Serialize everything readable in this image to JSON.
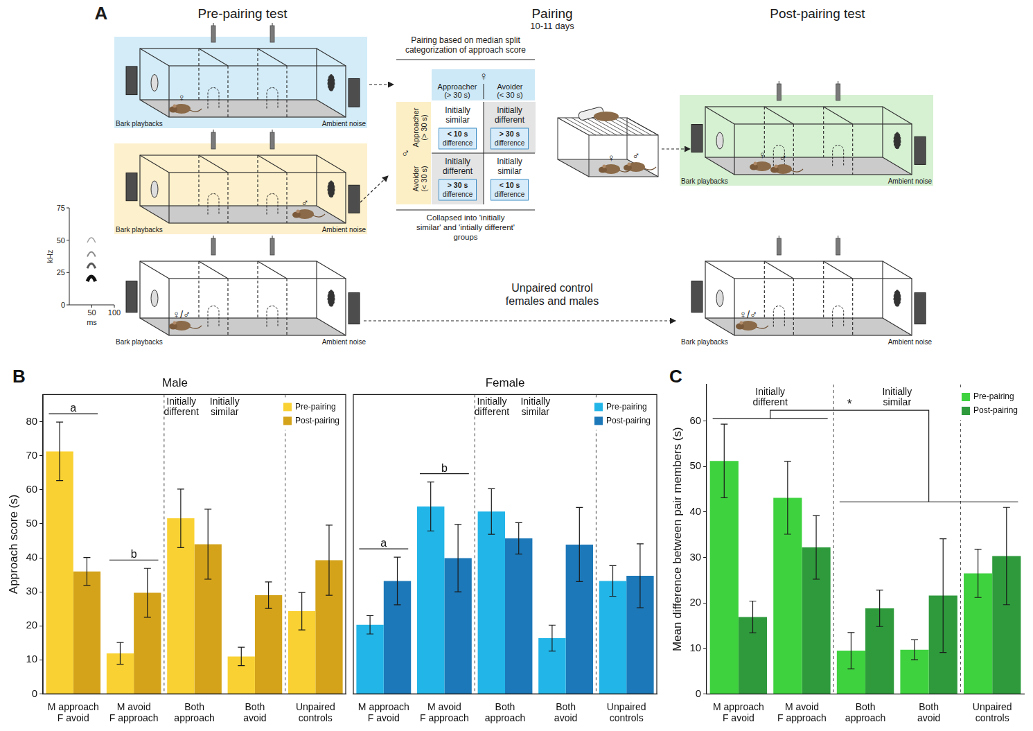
{
  "diagram": {
    "panel": "A",
    "pre_title": "Pre-pairing test",
    "pairing_title": "Pairing",
    "pairing_duration": "10-11 days",
    "post_title": "Post-pairing test",
    "speaker_left": "Bark playbacks",
    "speaker_right": "Ambient noise",
    "female": "♀",
    "male": "♂",
    "either": "♀/♂",
    "matrix": {
      "title": "Pairing based on median split categorization of approach score",
      "columns": [
        {
          "label": "Approacher",
          "criterion": "(> 30 s)"
        },
        {
          "label": "Avoider",
          "criterion": "(< 30 s)"
        }
      ],
      "rows": [
        {
          "label": "Approacher",
          "criterion": "(> 30 s)"
        },
        {
          "label": "Avoider",
          "criterion": "(< 30 s)"
        }
      ],
      "cells": [
        [
          {
            "label": "Initially similar",
            "difference": [
              "< 10 s",
              "difference"
            ]
          },
          {
            "label": "Initially different",
            "difference": [
              "> 30 s",
              "difference"
            ]
          }
        ],
        [
          {
            "label": "Initially different",
            "difference": [
              "> 30 s",
              "difference"
            ]
          },
          {
            "label": "Initially similar",
            "difference": [
              "< 10 s",
              "difference"
            ]
          }
        ]
      ],
      "footer": "Collapsed into 'initially similar' and 'intially different' groups"
    },
    "control_label": "Unpaired control females and males",
    "spectrogram": {
      "y_label": "kHz",
      "x_label": "ms",
      "ylim": [
        0,
        75
      ],
      "xlim": [
        0,
        100
      ],
      "yticks": [
        0,
        25,
        50,
        75
      ],
      "xticks": [
        50,
        100
      ],
      "bark": {
        "start_ms": 40,
        "end_ms": 58,
        "harmonics_khz": [
          22,
          32,
          41,
          52
        ]
      }
    }
  },
  "chart_data": [
    {
      "panel": "B",
      "type": "bar",
      "title": "Male",
      "y_label": "Approach score (s)",
      "categories": [
        [
          "M approach",
          "F avoid"
        ],
        [
          "M avoid",
          "F approach"
        ],
        [
          "Both",
          "approach"
        ],
        [
          "Both",
          "avoid"
        ],
        [
          "Unpaired",
          "controls"
        ]
      ],
      "groups": [
        {
          "label": "Initially different",
          "first": 0,
          "last": 1
        },
        {
          "label": "Initially similar",
          "first": 2,
          "last": 3
        }
      ],
      "series": [
        {
          "name": "Pre-pairing",
          "color": "#f9d132",
          "values": [
            71.3,
            11.9,
            51.6,
            11.0,
            24.3
          ],
          "errors": [
            8.6,
            3.2,
            8.6,
            2.7,
            5.5
          ]
        },
        {
          "name": "Post-pairing",
          "color": "#d4a31a",
          "values": [
            36.0,
            29.7,
            44.0,
            29.0,
            39.3
          ],
          "errors": [
            4.1,
            7.2,
            10.3,
            3.9,
            10.3
          ]
        }
      ],
      "annotations": [
        {
          "text": "a",
          "category": 0
        },
        {
          "text": "b",
          "category": 1
        }
      ],
      "ylim": [
        0,
        88
      ],
      "yticks": [
        0,
        10,
        20,
        30,
        40,
        50,
        60,
        70,
        80
      ],
      "grid": false,
      "legend": "top-right"
    },
    {
      "type": "bar",
      "title": "Female",
      "categories": [
        [
          "M approach",
          "F avoid"
        ],
        [
          "M avoid",
          "F approach"
        ],
        [
          "Both",
          "approach"
        ],
        [
          "Both",
          "avoid"
        ],
        [
          "Unpaired",
          "controls"
        ]
      ],
      "groups": [
        {
          "label": "Initially different",
          "first": 0,
          "last": 1
        },
        {
          "label": "Initially similar",
          "first": 2,
          "last": 3
        }
      ],
      "series": [
        {
          "name": "Pre-pairing",
          "color": "#22b5e8",
          "values": [
            20.3,
            55.1,
            53.6,
            16.4,
            33.2
          ],
          "errors": [
            2.7,
            7.2,
            6.7,
            3.8,
            4.5
          ]
        },
        {
          "name": "Post-pairing",
          "color": "#1c78b8",
          "values": [
            33.2,
            39.9,
            45.7,
            43.9,
            34.7
          ],
          "errors": [
            7.0,
            9.9,
            4.6,
            10.9,
            9.4
          ]
        }
      ],
      "annotations": [
        {
          "text": "a",
          "category": 0
        },
        {
          "text": "b",
          "category": 1
        }
      ],
      "ylim": [
        0,
        88
      ],
      "yticks": [
        0,
        10,
        20,
        30,
        40,
        50,
        60,
        70,
        80
      ],
      "grid": false,
      "legend": "top-right",
      "tick_labels": "x"
    },
    {
      "panel": "C",
      "type": "bar",
      "y_label": "Mean difference between pair members (s)",
      "categories": [
        [
          "M approach",
          "F avoid"
        ],
        [
          "M avoid",
          "F approach"
        ],
        [
          "Both",
          "approach"
        ],
        [
          "Both",
          "avoid"
        ],
        [
          "Unpaired",
          "controls"
        ]
      ],
      "groups": [
        {
          "label": "Initially different",
          "first": 0,
          "last": 1
        },
        {
          "label": "Initially similar",
          "first": 2,
          "last": 3
        }
      ],
      "series": [
        {
          "name": "Pre-pairing",
          "color": "#3fd23f",
          "values": [
            51.2,
            43.1,
            9.5,
            9.7,
            26.5
          ],
          "errors": [
            8.1,
            8.0,
            4.0,
            2.2,
            5.3
          ]
        },
        {
          "name": "Post-pairing",
          "color": "#2e9a3c",
          "values": [
            16.9,
            32.2,
            18.8,
            21.6,
            30.3
          ],
          "errors": [
            3.5,
            7.0,
            4.0,
            12.5,
            10.7
          ]
        }
      ],
      "annotations": [
        {
          "text": "*",
          "from": [
            0,
            1
          ],
          "to": [
            2,
            4
          ]
        }
      ],
      "ylim": [
        0,
        68
      ],
      "yticks": [
        0,
        10,
        20,
        30,
        40,
        50,
        60
      ],
      "grid": false,
      "legend": "top-right"
    }
  ]
}
